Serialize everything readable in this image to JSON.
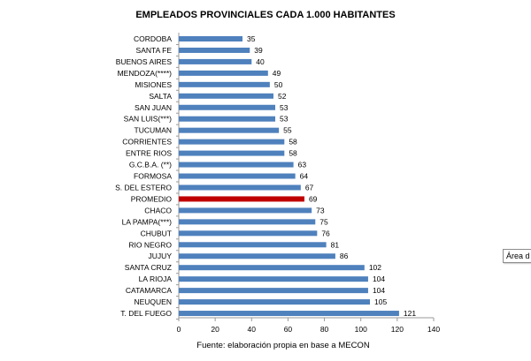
{
  "chart_data": {
    "type": "bar",
    "orientation": "horizontal",
    "title": "EMPLEADOS PROVINCIALES CADA 1.000 HABITANTES",
    "categories": [
      "CORDOBA",
      "SANTA FE",
      "BUENOS AIRES",
      "MENDOZA(****)",
      "MISIONES",
      "SALTA",
      "SAN JUAN",
      "SAN LUIS(***)",
      "TUCUMAN",
      "CORRIENTES",
      "ENTRE RIOS",
      "G.C.B.A. (**)",
      "FORMOSA",
      "S. DEL ESTERO",
      "PROMEDIO",
      "CHACO",
      "LA PAMPA(***)",
      "CHUBUT",
      "RIO NEGRO",
      "JUJUY",
      "SANTA CRUZ",
      "LA RIOJA",
      "CATAMARCA",
      "NEUQUEN",
      "T. DEL FUEGO"
    ],
    "values": [
      35,
      39,
      40,
      49,
      50,
      52,
      53,
      53,
      55,
      58,
      58,
      63,
      64,
      67,
      69,
      73,
      75,
      76,
      81,
      86,
      102,
      104,
      104,
      105,
      121
    ],
    "highlight_category": "PROMEDIO",
    "xlim": [
      0,
      140
    ],
    "xticks": [
      0,
      20,
      40,
      60,
      80,
      100,
      120,
      140
    ],
    "xlabel": "",
    "ylabel": "",
    "grid": false,
    "colors": {
      "bar": "#4f81bd",
      "highlight": "#c00000"
    }
  },
  "footer": {
    "source": "Fuente: elaboración propia en base a MECON"
  },
  "tooltip": {
    "label": "Área d"
  }
}
